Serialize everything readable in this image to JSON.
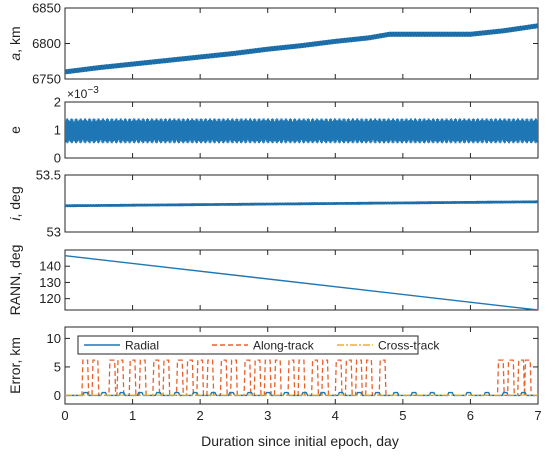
{
  "chart_data": [
    {
      "type": "line",
      "ylabel": "a, km",
      "ylabel_italic_prefix": "a",
      "ylabel_suffix": ", km",
      "ylim": [
        6750,
        6850
      ],
      "yticks": [
        6750,
        6800,
        6850
      ],
      "xlim": [
        0,
        7
      ],
      "series": [
        {
          "color": "#1f77b4",
          "style": "solid",
          "x": [
            0,
            0.5,
            1,
            1.5,
            2,
            2.5,
            3,
            3.5,
            4,
            4.5,
            4.8,
            5.0,
            5.5,
            6.0,
            6.5,
            7.0
          ],
          "y": [
            6760,
            6766,
            6771,
            6776,
            6781,
            6786,
            6792,
            6797,
            6803,
            6808,
            6813,
            6813,
            6813,
            6813,
            6818,
            6825
          ],
          "band": 3.5
        }
      ]
    },
    {
      "type": "line",
      "ylabel": "e",
      "exponent_label": "×10",
      "exponent_power": "−3",
      "ylim": [
        0,
        0.002
      ],
      "yticks": [
        0,
        0.001,
        0.002
      ],
      "ytick_labels": [
        "0",
        "1",
        "2"
      ],
      "xlim": [
        0,
        7
      ],
      "series": [
        {
          "color": "#1f77b4",
          "style": "solid",
          "center": 0.00097,
          "band": 0.00045
        }
      ]
    },
    {
      "type": "line",
      "ylabel": "i, deg",
      "ylabel_italic_prefix": "i",
      "ylabel_suffix": ", deg",
      "ylim": [
        53,
        53.5
      ],
      "yticks": [
        53,
        53.5
      ],
      "xlim": [
        0,
        7
      ],
      "series": [
        {
          "color": "#1f77b4",
          "style": "solid",
          "x": [
            0,
            1,
            2,
            3,
            4,
            5,
            6,
            7
          ],
          "y": [
            53.23,
            53.235,
            53.24,
            53.245,
            53.25,
            53.255,
            53.26,
            53.265
          ],
          "band": 0.012
        }
      ]
    },
    {
      "type": "line",
      "ylabel": "RANN, deg",
      "ylim": [
        113,
        150
      ],
      "yticks": [
        120,
        130,
        140
      ],
      "xlim": [
        0,
        7
      ],
      "series": [
        {
          "color": "#1f77b4",
          "style": "solid",
          "x": [
            0,
            7
          ],
          "y": [
            146.5,
            113
          ]
        }
      ]
    },
    {
      "type": "line",
      "ylabel": "Error, km",
      "ylim": [
        -1.5,
        12
      ],
      "yticks": [
        0,
        5,
        10
      ],
      "xlim": [
        0,
        7
      ],
      "xticks": [
        0,
        1,
        2,
        3,
        4,
        5,
        6,
        7
      ],
      "xlabel": "Duration since initial epoch, day",
      "legend": {
        "placement": "top",
        "entries": [
          "Radial",
          "Along-track",
          "Cross-track"
        ]
      },
      "series": [
        {
          "name": "Radial",
          "color": "#1f77b4",
          "style": "solid",
          "peak": 0.5
        },
        {
          "name": "Along-track",
          "color": "#e8602c",
          "style": "dashed",
          "peak": 6.2,
          "spikes": [
            0.3,
            0.45,
            0.7,
            0.82,
            1.0,
            1.15,
            1.35,
            1.5,
            1.7,
            1.85,
            2.0,
            2.15,
            2.35,
            2.5,
            2.7,
            2.85,
            3.0,
            3.15,
            3.35,
            3.5,
            3.7,
            3.85,
            4.05,
            4.2,
            4.35,
            4.5,
            4.7,
            6.45,
            6.6,
            6.75,
            6.85
          ]
        },
        {
          "name": "Cross-track",
          "color": "#e8b22c",
          "style": "dashdot",
          "peak": 0.05
        }
      ]
    }
  ]
}
